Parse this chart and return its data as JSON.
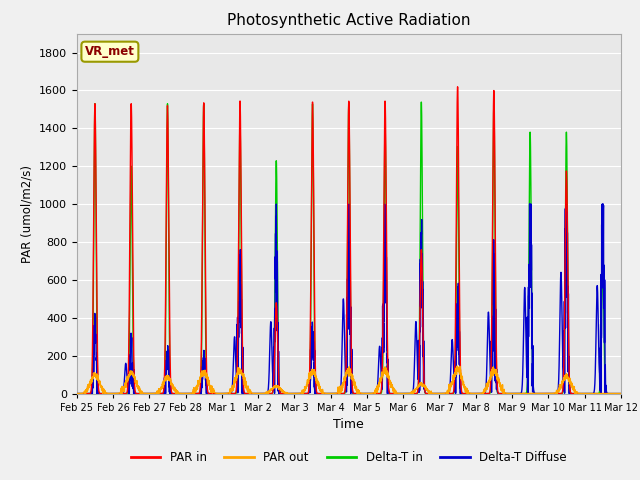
{
  "title": "Photosynthetic Active Radiation",
  "xlabel": "Time",
  "ylabel": "PAR (umol/m2/s)",
  "ylim": [
    0,
    1900
  ],
  "yticks": [
    0,
    200,
    400,
    600,
    800,
    1000,
    1200,
    1400,
    1600,
    1800
  ],
  "label_box": "VR_met",
  "legend_labels": [
    "PAR in",
    "PAR out",
    "Delta-T in",
    "Delta-T Diffuse"
  ],
  "legend_colors": [
    "#ff0000",
    "#ffa500",
    "#00cc00",
    "#0000cc"
  ],
  "n_days": 15,
  "title_fontsize": 11,
  "day_names": [
    "Feb 25",
    "Feb 26",
    "Feb 27",
    "Feb 28",
    "Mar 1",
    "Mar 2",
    "Mar 3",
    "Mar 4",
    "Mar 5",
    "Mar 6",
    "Mar 7",
    "Mar 8",
    "Mar 9",
    "Mar 10",
    "Mar 11",
    "Mar 12"
  ],
  "par_in_peaks": [
    1530,
    1530,
    1520,
    1535,
    1545,
    480,
    1540,
    1545,
    1545,
    760,
    1620,
    1600,
    0,
    1175,
    0
  ],
  "par_out_peaks": [
    100,
    110,
    85,
    115,
    120,
    40,
    115,
    120,
    120,
    50,
    130,
    120,
    0,
    90,
    0
  ],
  "delta_t_peaks": [
    1530,
    1200,
    1530,
    1530,
    1430,
    1230,
    1530,
    1530,
    1415,
    1540,
    1305,
    1530,
    1380,
    1380,
    700
  ],
  "delta_d_peaks": [
    350,
    270,
    200,
    180,
    650,
    720,
    310,
    710,
    840,
    700,
    475,
    560,
    860,
    970,
    960
  ],
  "delta_d_peaks2": [
    0,
    160,
    0,
    0,
    300,
    380,
    0,
    500,
    250,
    380,
    285,
    430,
    560,
    640,
    570
  ],
  "linewidth": 1.0,
  "fig_bg": "#f0f0f0",
  "ax_bg": "#e8e8e8"
}
